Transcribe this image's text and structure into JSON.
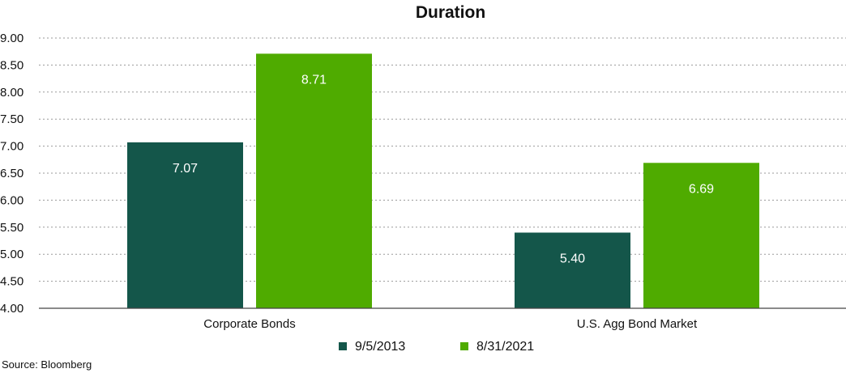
{
  "chart_data": {
    "type": "bar",
    "title": "Duration",
    "categories": [
      "Corporate Bonds",
      "U.S. Agg Bond Market"
    ],
    "series": [
      {
        "name": "9/5/2013",
        "color": "#14564a",
        "values": [
          7.07,
          5.4
        ],
        "labels": [
          "7.07",
          "5.40"
        ]
      },
      {
        "name": "8/31/2021",
        "color": "#4fab00",
        "values": [
          8.71,
          6.69
        ],
        "labels": [
          "8.71",
          "6.69"
        ]
      }
    ],
    "ylim": [
      4.0,
      9.0
    ],
    "yticks": [
      "4.00",
      "4.50",
      "5.00",
      "5.50",
      "6.00",
      "6.50",
      "7.00",
      "7.50",
      "8.00",
      "8.50",
      "9.00"
    ],
    "xlabel": "",
    "ylabel": "",
    "grid": true,
    "legend_position": "bottom-center"
  },
  "source_text": "Source: Bloomberg"
}
